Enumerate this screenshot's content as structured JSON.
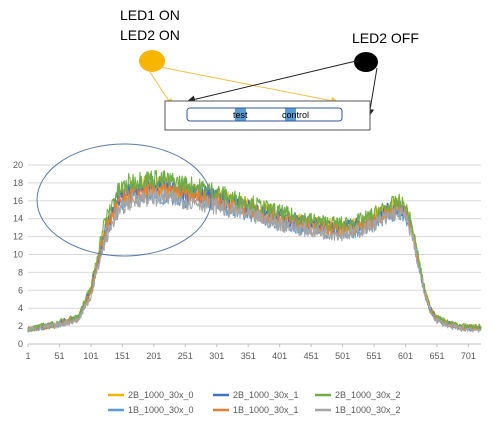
{
  "annotations": {
    "led1_on": "LED1 ON",
    "led2_on": "LED2 ON",
    "led2_off": "LED2 OFF",
    "strip_test": "test",
    "strip_control": "control",
    "led_on_color": "#F7B500",
    "led_off_color": "#000000",
    "arrow_on_color": "#F2C14E",
    "arrow_off_color": "#222222",
    "strip_patch_color": "#5B9BD5"
  },
  "chart_data": {
    "type": "line",
    "title": "",
    "xlabel": "",
    "ylabel": "",
    "xlim": [
      1,
      721
    ],
    "ylim": [
      0,
      20
    ],
    "x_ticks": [
      1,
      51,
      101,
      151,
      201,
      251,
      301,
      351,
      401,
      451,
      501,
      551,
      601,
      651,
      701
    ],
    "y_ticks": [
      0,
      2,
      4,
      6,
      8,
      10,
      12,
      14,
      16,
      18,
      20
    ],
    "grid": "horizontal",
    "legend_position": "bottom",
    "x": [
      1,
      41,
      81,
      101,
      121,
      141,
      161,
      181,
      201,
      221,
      241,
      261,
      281,
      301,
      321,
      341,
      361,
      381,
      401,
      421,
      441,
      461,
      481,
      501,
      521,
      541,
      561,
      581,
      591,
      601,
      611,
      621,
      631,
      641,
      651,
      671,
      691,
      721
    ],
    "series": [
      {
        "name": "2B_1000_30x_0",
        "color": "#F2B800",
        "values": [
          1.6,
          2.1,
          3.0,
          6.0,
          12.5,
          16.0,
          17.2,
          17.7,
          17.8,
          17.6,
          17.3,
          17.0,
          16.8,
          16.5,
          16.0,
          15.6,
          15.2,
          14.8,
          14.4,
          14.0,
          13.7,
          13.4,
          13.2,
          13.1,
          13.3,
          13.8,
          14.6,
          15.3,
          15.5,
          15.0,
          13.0,
          9.5,
          6.0,
          3.8,
          2.8,
          2.2,
          1.9,
          1.8
        ]
      },
      {
        "name": "2B_1000_30x_1",
        "color": "#4472C4",
        "values": [
          1.6,
          2.1,
          3.0,
          6.0,
          12.3,
          15.8,
          17.0,
          17.5,
          17.6,
          17.4,
          17.1,
          16.9,
          16.7,
          16.4,
          15.9,
          15.5,
          15.1,
          14.7,
          14.3,
          13.9,
          13.6,
          13.3,
          13.1,
          13.0,
          13.2,
          13.7,
          14.5,
          15.2,
          15.4,
          14.9,
          12.9,
          9.4,
          5.9,
          3.8,
          2.8,
          2.2,
          1.9,
          1.8
        ]
      },
      {
        "name": "2B_1000_30x_2",
        "color": "#70AD47",
        "values": [
          1.7,
          2.2,
          3.1,
          6.3,
          13.2,
          16.8,
          18.0,
          18.4,
          18.5,
          18.3,
          18.0,
          17.7,
          17.4,
          17.0,
          16.4,
          16.0,
          15.6,
          15.1,
          14.7,
          14.3,
          14.0,
          13.7,
          13.5,
          13.4,
          13.6,
          14.1,
          14.9,
          15.6,
          15.8,
          15.3,
          13.3,
          9.8,
          6.2,
          3.9,
          2.9,
          2.3,
          2.0,
          1.9
        ]
      },
      {
        "name": "1B_1000_30x_0",
        "color": "#5B9BD5",
        "values": [
          1.6,
          2.0,
          2.8,
          5.6,
          11.5,
          14.9,
          16.1,
          16.6,
          16.7,
          16.5,
          16.3,
          16.1,
          15.9,
          15.6,
          15.2,
          14.8,
          14.4,
          14.0,
          13.6,
          13.3,
          13.0,
          12.7,
          12.5,
          12.4,
          12.6,
          13.1,
          13.9,
          14.6,
          14.8,
          14.3,
          12.5,
          9.2,
          5.8,
          3.7,
          2.7,
          2.1,
          1.8,
          1.7
        ]
      },
      {
        "name": "1B_1000_30x_1",
        "color": "#ED7D31",
        "values": [
          1.7,
          2.1,
          2.9,
          5.9,
          12.0,
          15.4,
          16.6,
          17.1,
          17.2,
          17.0,
          16.8,
          16.6,
          16.4,
          16.1,
          15.6,
          15.2,
          14.8,
          14.4,
          14.0,
          13.7,
          13.4,
          13.1,
          12.9,
          12.8,
          13.0,
          13.5,
          14.3,
          15.0,
          15.2,
          14.7,
          12.8,
          9.4,
          6.0,
          3.8,
          2.8,
          2.2,
          1.9,
          1.8
        ]
      },
      {
        "name": "1B_1000_30x_2",
        "color": "#A5A5A5",
        "values": [
          1.6,
          2.0,
          2.7,
          5.4,
          11.0,
          14.5,
          15.8,
          16.3,
          16.4,
          16.3,
          16.1,
          15.9,
          15.7,
          15.4,
          15.0,
          14.6,
          14.2,
          13.8,
          13.4,
          13.1,
          12.8,
          12.6,
          12.4,
          12.3,
          12.5,
          13.0,
          13.8,
          14.5,
          14.7,
          14.2,
          12.3,
          9.0,
          5.7,
          3.6,
          2.6,
          2.0,
          1.7,
          1.6
        ]
      }
    ]
  }
}
